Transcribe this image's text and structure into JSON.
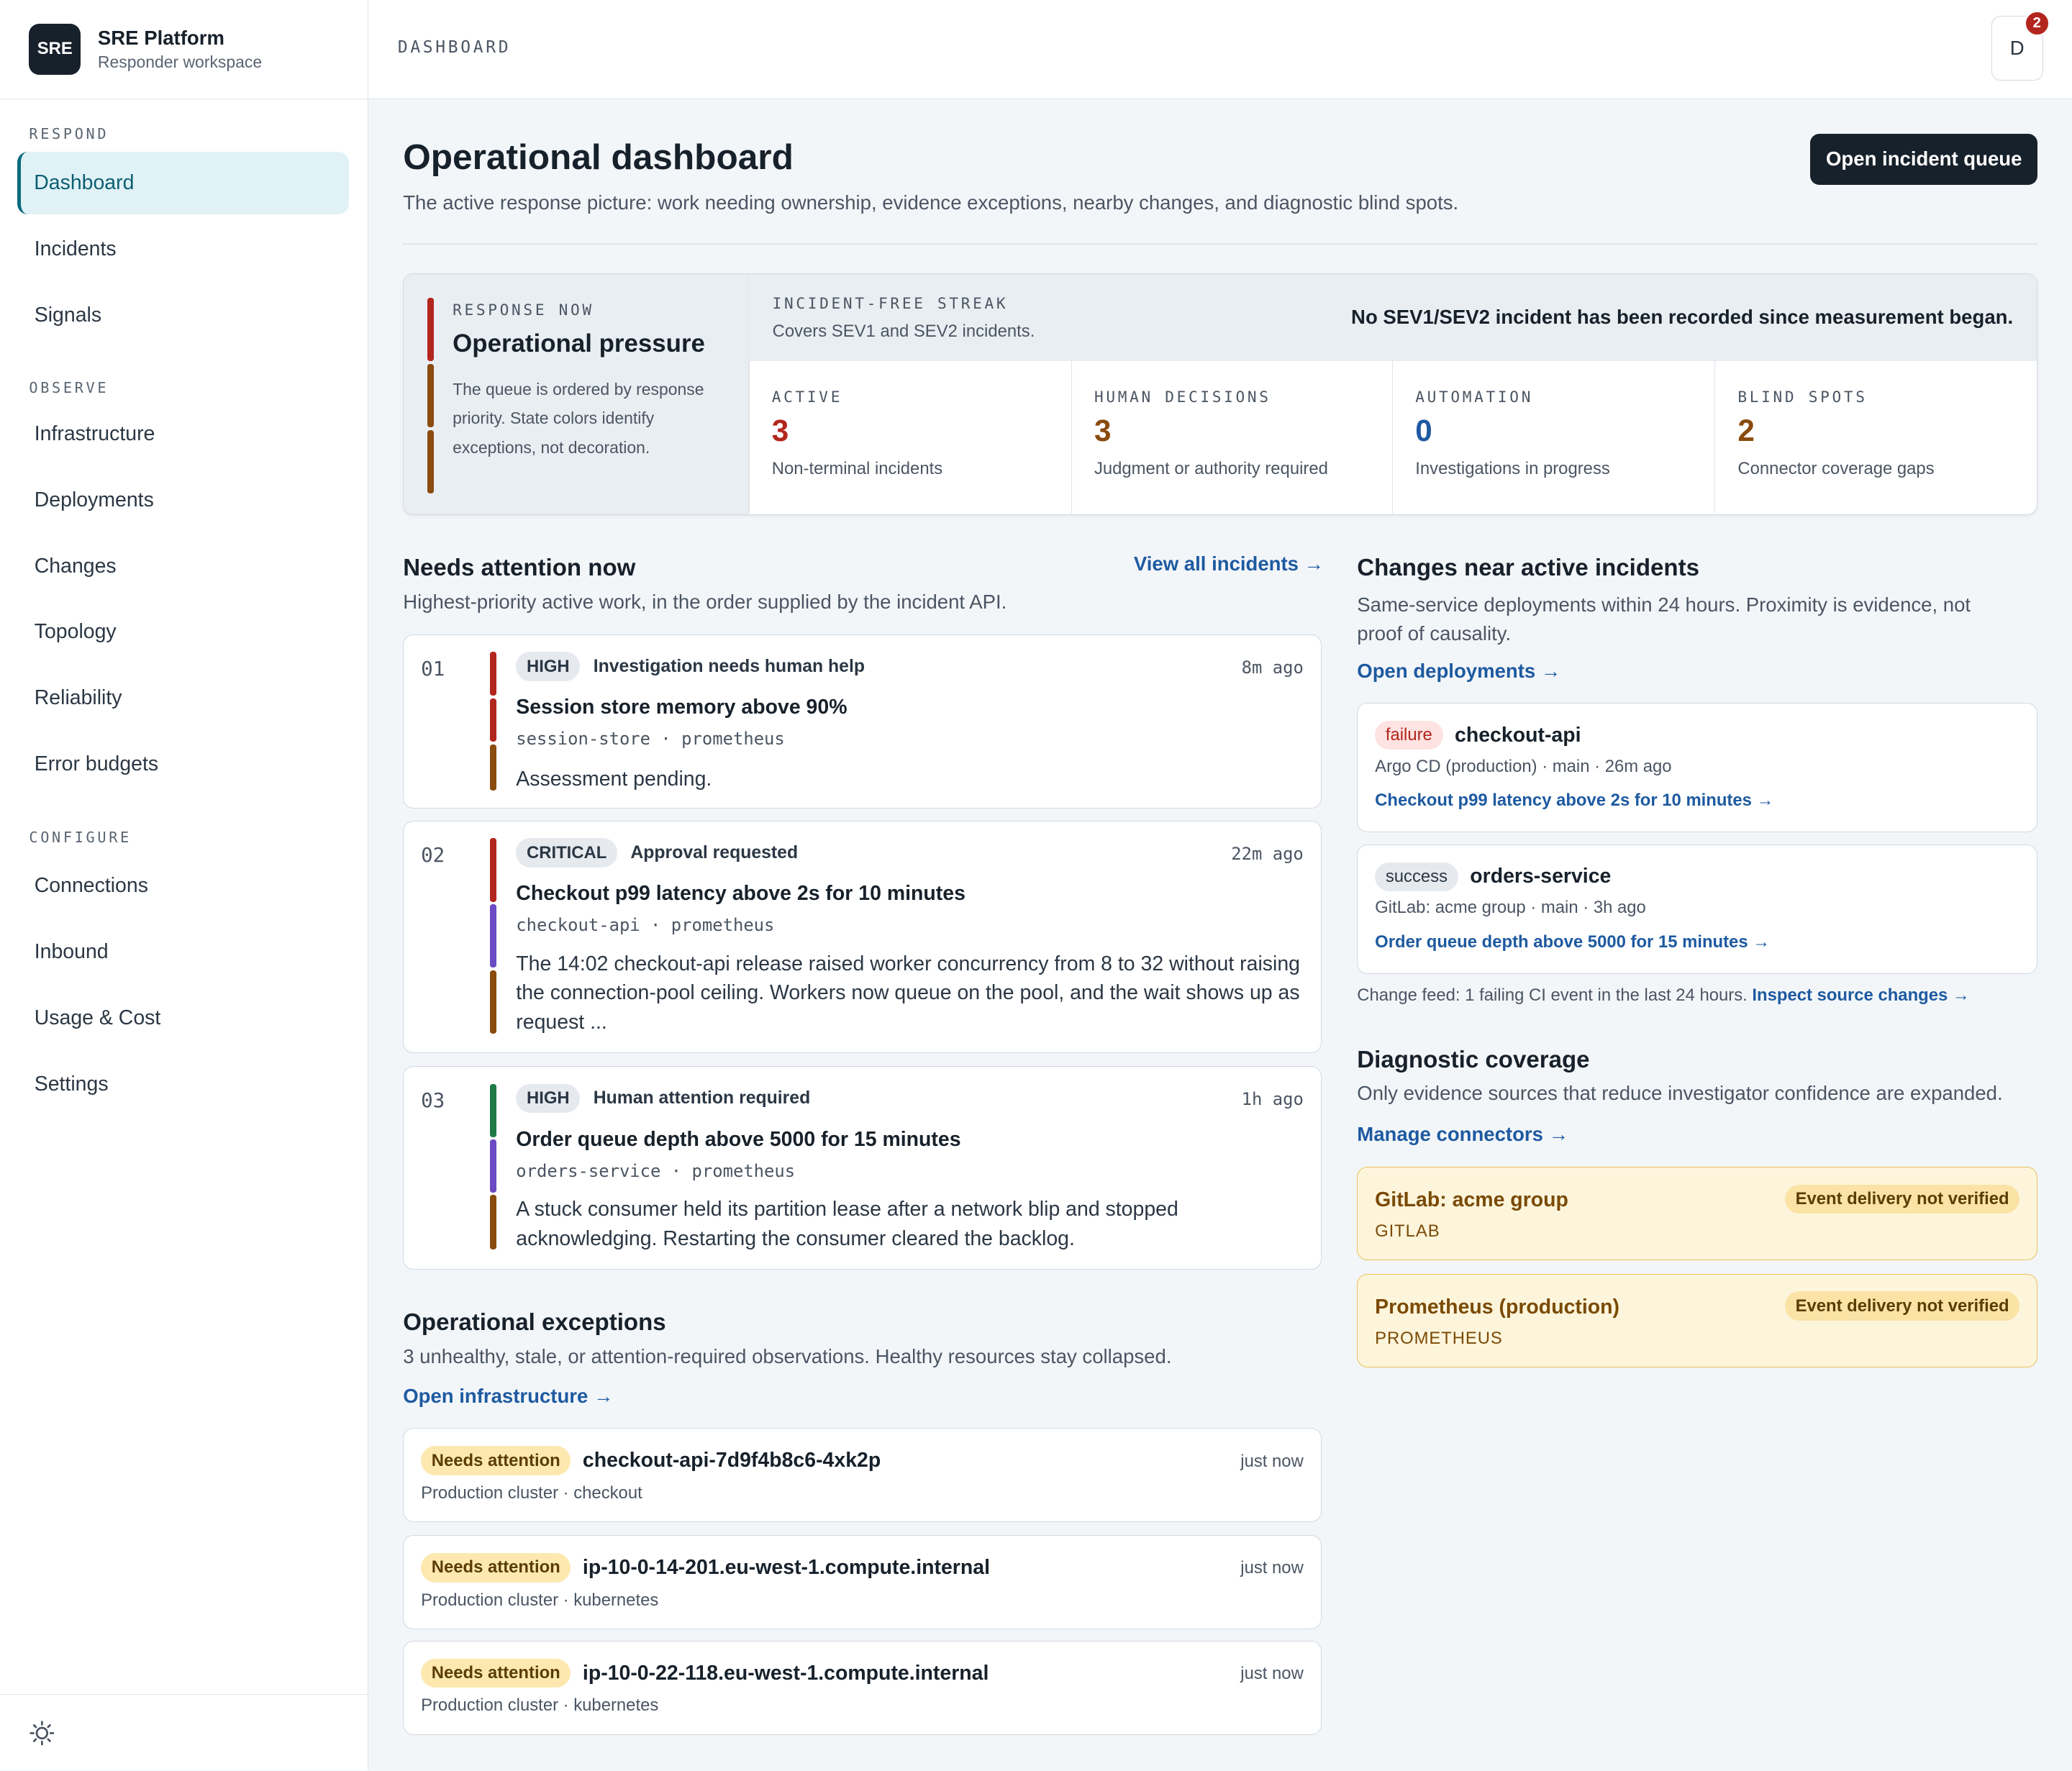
{
  "brand": {
    "logo": "SRE",
    "title": "SRE Platform",
    "subtitle": "Responder workspace"
  },
  "nav": {
    "respond_label": "RESPOND",
    "observe_label": "OBSERVE",
    "configure_label": "CONFIGURE",
    "items": [
      "Dashboard",
      "Incidents",
      "Signals",
      "Infrastructure",
      "Deployments",
      "Changes",
      "Topology",
      "Reliability",
      "Error budgets",
      "Connections",
      "Inbound",
      "Usage & Cost",
      "Settings"
    ],
    "active": "Dashboard"
  },
  "topbar": {
    "breadcrumb": "DASHBOARD",
    "avatar": "D",
    "notification_count": "2"
  },
  "header": {
    "title": "Operational dashboard",
    "subtitle": "The active response picture: work needing ownership, evidence exceptions, nearby changes, and diagnostic blind spots.",
    "cta": "Open incident queue"
  },
  "pressure": {
    "kicker": "RESPONSE NOW",
    "title": "Operational pressure",
    "description": "The queue is ordered by response priority. State colors identify exceptions, not decoration.",
    "streak_label": "INCIDENT-FREE STREAK",
    "streak_note": "Covers SEV1 and SEV2 incidents.",
    "streak_text": "No SEV1/SEV2 incident has been recorded since measurement began.",
    "metrics": [
      {
        "label": "ACTIVE",
        "value": "3",
        "desc": "Non-terminal incidents",
        "color": "#b3261e"
      },
      {
        "label": "HUMAN DECISIONS",
        "value": "3",
        "desc": "Judgment or authority required",
        "color": "#8a4b0f"
      },
      {
        "label": "AUTOMATION",
        "value": "0",
        "desc": "Investigations in progress",
        "color": "#1e5aa0"
      },
      {
        "label": "BLIND SPOTS",
        "value": "2",
        "desc": "Connector coverage gaps",
        "color": "#8a4b0f"
      }
    ]
  },
  "attention": {
    "title": "Needs attention now",
    "subtitle": "Highest-priority active work, in the order supplied by the incident API.",
    "link": "View all incidents →",
    "items": [
      {
        "num": "01",
        "severity": "HIGH",
        "status": "Investigation needs human help",
        "age": "8m ago",
        "title": "Session store memory above 90%",
        "service": "session-store",
        "source": "prometheus",
        "summary": "Assessment pending."
      },
      {
        "num": "02",
        "severity": "CRITICAL",
        "status": "Approval requested",
        "age": "22m ago",
        "title": "Checkout p99 latency above 2s for 10 minutes",
        "service": "checkout-api",
        "source": "prometheus",
        "summary": "The 14:02 checkout-api release raised worker concurrency from 8 to 32 without raising the connection-pool ceiling. Workers now queue on the pool, and the wait shows up as request ..."
      },
      {
        "num": "03",
        "severity": "HIGH",
        "status": "Human attention required",
        "age": "1h ago",
        "title": "Order queue depth above 5000 for 15 minutes",
        "service": "orders-service",
        "source": "prometheus",
        "summary": "A stuck consumer held its partition lease after a network blip and stopped acknowledging. Restarting the consumer cleared the backlog."
      }
    ]
  },
  "exceptions": {
    "title": "Operational exceptions",
    "subtitle": "3 unhealthy, stale, or attention-required observations. Healthy resources stay collapsed.",
    "link": "Open infrastructure →",
    "items": [
      {
        "badge": "Needs attention",
        "name": "checkout-api-7d9f4b8c6-4xk2p",
        "meta": "Production cluster · checkout",
        "age": "just now"
      },
      {
        "badge": "Needs attention",
        "name": "ip-10-0-14-201.eu-west-1.compute.internal",
        "meta": "Production cluster · kubernetes",
        "age": "just now"
      },
      {
        "badge": "Needs attention",
        "name": "ip-10-0-22-118.eu-west-1.compute.internal",
        "meta": "Production cluster · kubernetes",
        "age": "just now"
      }
    ]
  },
  "changes": {
    "title": "Changes near active incidents",
    "subtitle": "Same-service deployments within 24 hours. Proximity is evidence, not proof of causality.",
    "link": "Open deployments →",
    "items": [
      {
        "status": "failure",
        "service": "checkout-api",
        "meta": "Argo CD (production) · main · 26m ago",
        "incident": "Checkout p99 latency above 2s for 10 minutes →"
      },
      {
        "status": "success",
        "service": "orders-service",
        "meta": "GitLab: acme group · main · 3h ago",
        "incident": "Order queue depth above 5000 for 15 minutes →"
      }
    ],
    "feed_text": "Change feed: 1 failing CI event in the last 24 hours.",
    "feed_link": "Inspect source changes →"
  },
  "coverage": {
    "title": "Diagnostic coverage",
    "subtitle": "Only evidence sources that reduce investigator confidence are expanded.",
    "link": "Manage connectors →",
    "items": [
      {
        "name": "GitLab: acme group",
        "type": "GITLAB",
        "badge": "Event delivery not verified"
      },
      {
        "name": "Prometheus (production)",
        "type": "PROMETHEUS",
        "badge": "Event delivery not verified"
      }
    ]
  }
}
